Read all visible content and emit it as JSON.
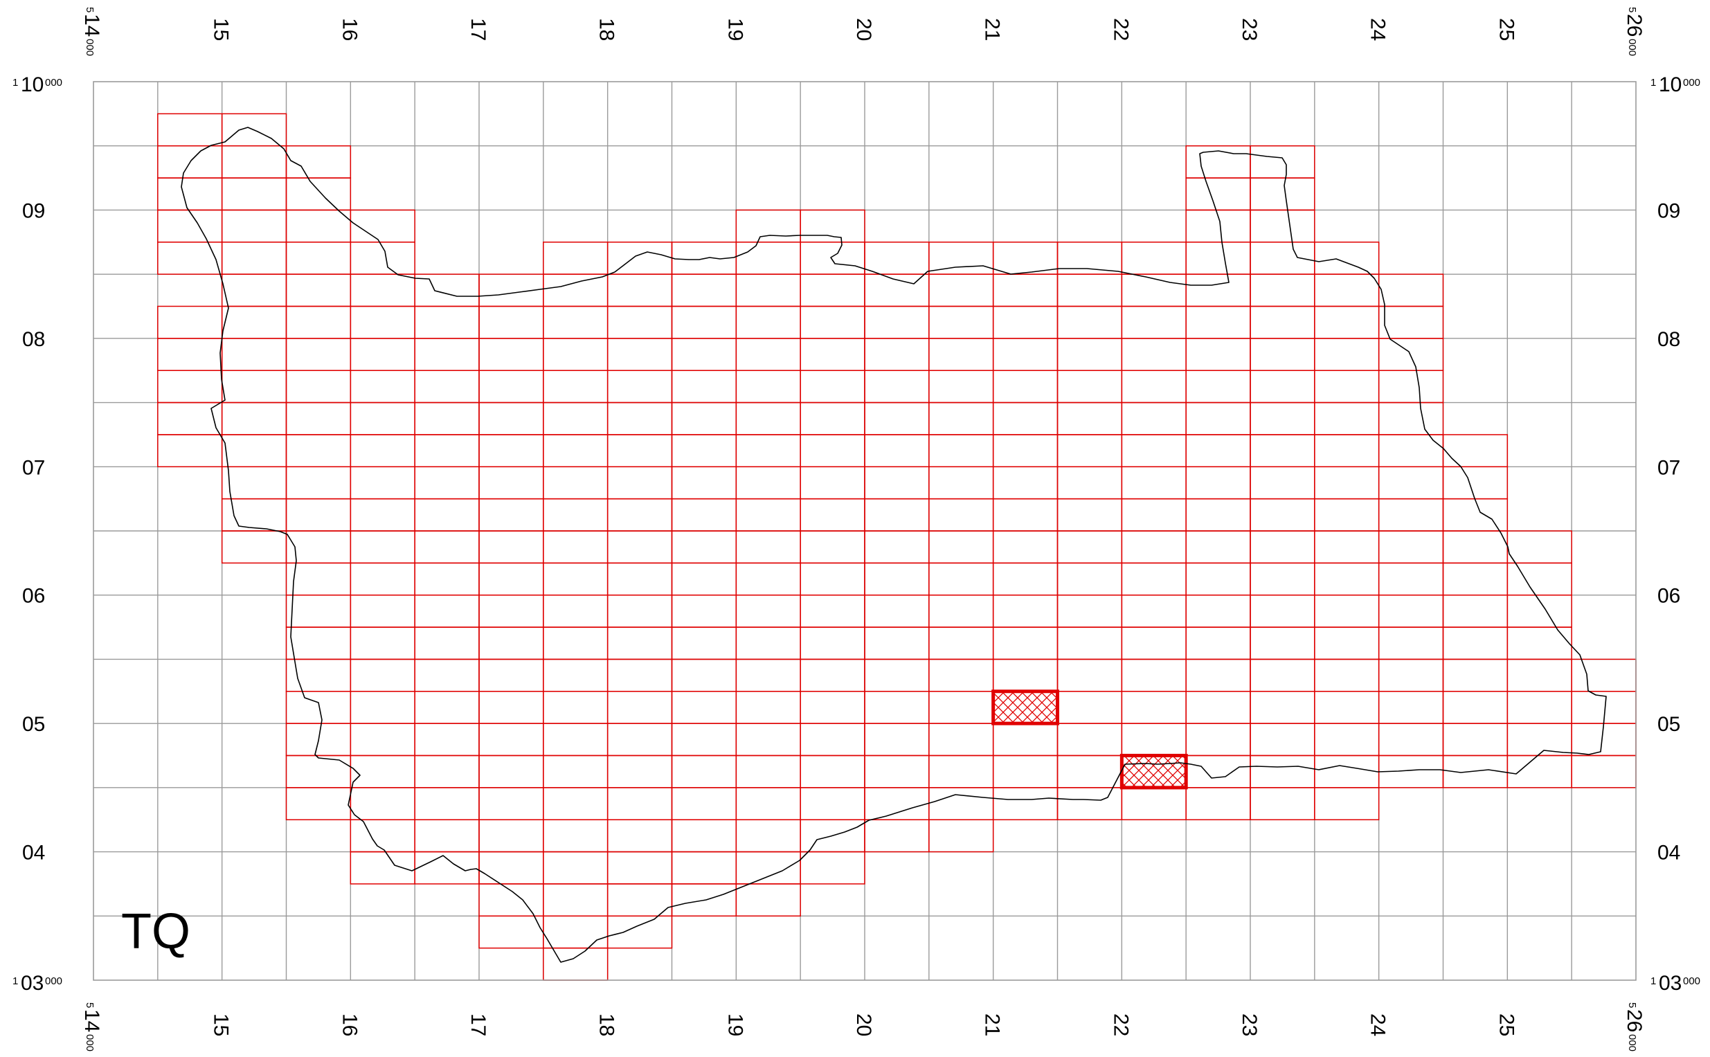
{
  "map": {
    "grid_square": "TQ",
    "colors": {
      "grid": "#9a9a9a",
      "tiles": "#e00000",
      "boundary": "#000000",
      "highlight": "#e00000"
    },
    "eastings": {
      "range_km": [
        14,
        26
      ],
      "prefix_small": "5",
      "suffix_small": "000",
      "first_main": "14",
      "last_main": "26",
      "labels": [
        "15",
        "16",
        "17",
        "18",
        "19",
        "20",
        "21",
        "22",
        "23",
        "24",
        "25"
      ]
    },
    "northings": {
      "range_km": [
        3,
        10
      ],
      "prefix_small": "1",
      "suffix_small": "000",
      "first_main": "03",
      "last_main": "10",
      "labels": [
        "04",
        "05",
        "06",
        "07",
        "08",
        "09"
      ]
    },
    "highlighted_tiles": [
      {
        "e": 21.0,
        "n": 5.0
      },
      {
        "e": 22.0,
        "n": 4.5
      }
    ]
  }
}
